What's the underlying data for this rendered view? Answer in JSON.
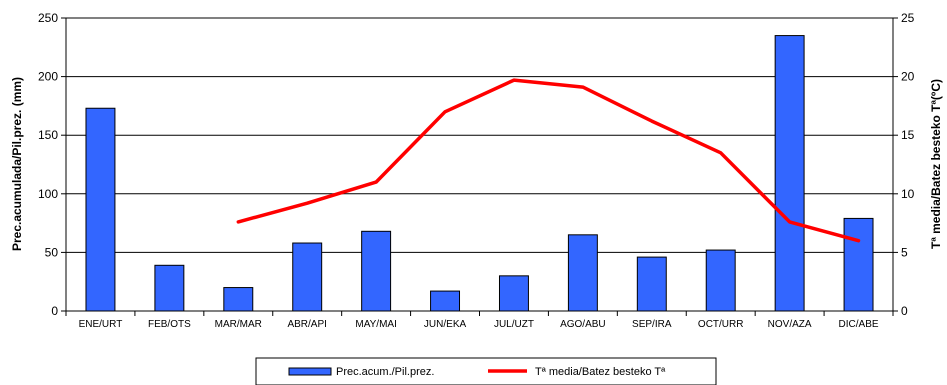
{
  "chart_data": {
    "type": "bar+line",
    "categories": [
      "ENE/URT",
      "FEB/OTS",
      "MAR/MAR",
      "ABR/API",
      "MAY/MAI",
      "JUN/EKA",
      "JUL/UZT",
      "AGO/ABU",
      "SEP/IRA",
      "OCT/URR",
      "NOV/AZA",
      "DIC/ABE"
    ],
    "series": [
      {
        "name": "Prec.acum./Pil.prez.",
        "type": "bar",
        "axis": "left",
        "color": "#3366ff",
        "values": [
          173,
          39,
          20,
          58,
          68,
          17,
          30,
          65,
          46,
          52,
          235,
          79
        ]
      },
      {
        "name": "Tª media/Batez besteko Tª",
        "type": "line",
        "axis": "right",
        "color": "#ff0000",
        "values": [
          null,
          null,
          7.6,
          9.2,
          11.0,
          17.0,
          19.7,
          19.1,
          16.2,
          13.5,
          7.6,
          6.0
        ]
      }
    ],
    "ylabel_left": "Prec.acumulada/Pil.prez. (mm)",
    "ylabel_right": "Tª media/Batez besteko Tª(ºC)",
    "ylim_left": [
      0,
      250
    ],
    "ylim_right": [
      0,
      25
    ],
    "yticks_left": [
      "0",
      "50",
      "100",
      "150",
      "200",
      "250"
    ],
    "yticks_right": [
      "0",
      "5",
      "10",
      "15",
      "20",
      "25"
    ],
    "grid": true,
    "legend_position": "bottom"
  }
}
